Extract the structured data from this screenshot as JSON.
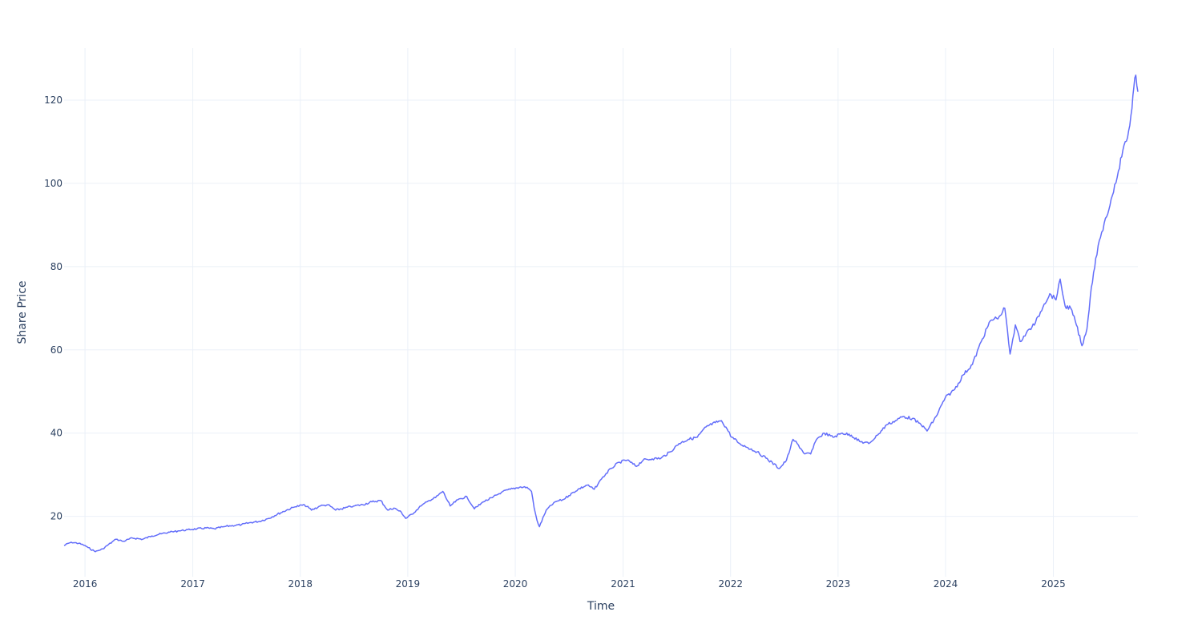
{
  "chart_data": {
    "type": "line",
    "title": "",
    "xlabel": "Time",
    "ylabel": "Share Price",
    "xlim": [
      "2015-10-22",
      "2025-10-15"
    ],
    "ylim": [
      5.5,
      132.5
    ],
    "x_ticks": [
      "2016-01-01",
      "2017-01-01",
      "2018-01-01",
      "2019-01-01",
      "2020-01-01",
      "2021-01-01",
      "2022-01-01",
      "2023-01-01",
      "2024-01-01",
      "2025-01-01"
    ],
    "x_tick_labels": [
      "2016",
      "2017",
      "2018",
      "2019",
      "2020",
      "2021",
      "2022",
      "2023",
      "2024",
      "2025"
    ],
    "y_ticks": [
      20,
      40,
      60,
      80,
      100,
      120
    ],
    "y_tick_labels": [
      "20",
      "40",
      "60",
      "80",
      "100",
      "120"
    ],
    "grid": true,
    "legend": "none",
    "colors": {
      "line": "#636efa",
      "grid": "#ebf0f8",
      "text": "#2a3f5f",
      "background": "#ffffff"
    },
    "series": [
      {
        "x": [
          "2015-10-22",
          "2015-11-15",
          "2015-12-10",
          "2016-01-01",
          "2016-01-12",
          "2016-02-05",
          "2016-03-01",
          "2016-04-15",
          "2016-05-10",
          "2016-06-10",
          "2016-07-15",
          "2016-08-15",
          "2016-09-15",
          "2016-10-15",
          "2016-11-15",
          "2016-12-15",
          "2017-01-15",
          "2017-02-15",
          "2017-03-15",
          "2017-04-15",
          "2017-05-15",
          "2017-06-15",
          "2017-07-15",
          "2017-08-15",
          "2017-09-15",
          "2017-10-15",
          "2017-11-15",
          "2017-12-15",
          "2018-01-15",
          "2018-02-08",
          "2018-03-10",
          "2018-04-05",
          "2018-05-01",
          "2018-06-01",
          "2018-07-01",
          "2018-08-01",
          "2018-09-01",
          "2018-10-01",
          "2018-10-25",
          "2018-11-15",
          "2018-12-10",
          "2018-12-25",
          "2019-01-15",
          "2019-02-15",
          "2019-03-15",
          "2019-04-05",
          "2019-04-30",
          "2019-05-25",
          "2019-06-20",
          "2019-07-20",
          "2019-08-15",
          "2019-09-15",
          "2019-10-15",
          "2019-11-15",
          "2019-12-15",
          "2020-01-15",
          "2020-02-10",
          "2020-02-25",
          "2020-03-05",
          "2020-03-15",
          "2020-03-23",
          "2020-04-15",
          "2020-05-15",
          "2020-06-10",
          "2020-07-01",
          "2020-08-01",
          "2020-09-01",
          "2020-09-25",
          "2020-10-20",
          "2020-11-20",
          "2020-12-20",
          "2021-01-15",
          "2021-02-15",
          "2021-03-10",
          "2021-04-10",
          "2021-05-10",
          "2021-06-10",
          "2021-07-10",
          "2021-08-10",
          "2021-09-10",
          "2021-10-10",
          "2021-11-10",
          "2021-12-01",
          "2021-12-20",
          "2022-01-05",
          "2022-02-01",
          "2022-03-01",
          "2022-04-01",
          "2022-05-01",
          "2022-06-16",
          "2022-07-10",
          "2022-08-01",
          "2022-08-15",
          "2022-09-10",
          "2022-09-30",
          "2022-10-20",
          "2022-11-15",
          "2022-12-15",
          "2023-01-15",
          "2023-02-15",
          "2023-03-15",
          "2023-04-15",
          "2023-05-15",
          "2023-06-15",
          "2023-07-15",
          "2023-08-10",
          "2023-09-10",
          "2023-10-10",
          "2023-10-30",
          "2023-11-30",
          "2023-12-31",
          "2024-02-01",
          "2024-03-01",
          "2024-04-01",
          "2024-05-01",
          "2024-06-01",
          "2024-07-01",
          "2024-07-20",
          "2024-08-07",
          "2024-08-25",
          "2024-09-10",
          "2024-10-01",
          "2024-11-01",
          "2024-12-01",
          "2024-12-20",
          "2025-01-10",
          "2025-01-24",
          "2025-02-10",
          "2025-03-01",
          "2025-03-20",
          "2025-04-08",
          "2025-04-25",
          "2025-05-10",
          "2025-05-25",
          "2025-06-10",
          "2025-07-01",
          "2025-07-20",
          "2025-08-10",
          "2025-08-25",
          "2025-09-10",
          "2025-09-25",
          "2025-10-01",
          "2025-10-08",
          "2025-10-15"
        ],
        "y": [
          13.0,
          13.8,
          13.5,
          13.0,
          12.5,
          11.5,
          12.2,
          14.5,
          14.0,
          14.8,
          14.5,
          15.3,
          15.8,
          16.2,
          16.5,
          16.8,
          17.0,
          17.2,
          17.0,
          17.5,
          17.8,
          18.0,
          18.5,
          18.8,
          19.5,
          20.5,
          21.5,
          22.3,
          22.8,
          21.5,
          22.5,
          22.8,
          21.5,
          22.0,
          22.5,
          22.8,
          23.5,
          23.8,
          21.5,
          22.0,
          21.0,
          19.5,
          20.5,
          22.5,
          23.8,
          24.5,
          26.0,
          22.5,
          24.0,
          24.8,
          21.8,
          23.5,
          24.5,
          25.8,
          26.5,
          27.0,
          27.0,
          26.0,
          22.0,
          19.0,
          17.5,
          21.5,
          23.5,
          24.0,
          25.0,
          26.5,
          27.5,
          26.5,
          29.0,
          31.5,
          33.0,
          33.5,
          32.0,
          33.5,
          33.8,
          34.0,
          35.5,
          37.5,
          38.5,
          39.0,
          41.5,
          42.5,
          43.0,
          41.0,
          39.0,
          37.5,
          36.5,
          35.5,
          34.0,
          31.5,
          33.5,
          38.5,
          37.5,
          35.0,
          35.0,
          38.5,
          40.0,
          39.0,
          40.0,
          39.5,
          38.0,
          37.5,
          39.5,
          42.0,
          43.0,
          44.0,
          43.5,
          42.0,
          40.5,
          44.0,
          48.5,
          50.5,
          54.0,
          56.5,
          62.0,
          67.0,
          68.0,
          70.0,
          59.0,
          66.0,
          62.0,
          64.0,
          66.5,
          71.0,
          73.5,
          72.0,
          77.0,
          70.5,
          70.0,
          66.0,
          61.0,
          65.0,
          75.0,
          82.0,
          87.0,
          92.0,
          97.0,
          103.0,
          108.0,
          111.0,
          118.0,
          123.0,
          126.0,
          122.0
        ]
      }
    ]
  }
}
